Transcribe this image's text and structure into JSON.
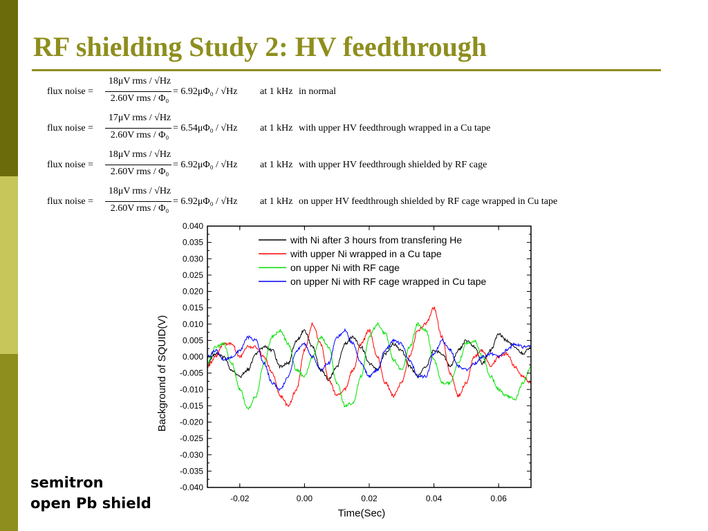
{
  "slide": {
    "title": "RF shielding Study 2: HV feedthrough",
    "accent_color": "#8e8e1e",
    "sidebar_colors": [
      "#6b6b0c",
      "#c6c65a",
      "#8e8e1e"
    ],
    "footnote_line1": "semitron",
    "footnote_line2": "open Pb shield"
  },
  "equations": [
    {
      "lead": "flux noise =",
      "numerator": "18μV rms / √Hz",
      "denominator": "2.60V rms / Φ₀",
      "result": "= 6.92μΦ₀ / √Hz",
      "condition": "at 1 kHz",
      "note": "in normal"
    },
    {
      "lead": "flux noise =",
      "numerator": "17μV rms / √Hz",
      "denominator": "2.60V rms / Φ₀",
      "result": "= 6.54μΦ₀ / √Hz",
      "condition": "at 1 kHz",
      "note": "with upper HV feedthrough wrapped in a Cu tape"
    },
    {
      "lead": "flux noise =",
      "numerator": "18μV rms / √Hz",
      "denominator": "2.60V rms / Φ₀",
      "result": "= 6.92μΦ₀ / √Hz",
      "condition": "at 1 kHz",
      "note": "with upper HV feedthrough shielded by RF cage"
    },
    {
      "lead": "flux noise =",
      "numerator": "18μV rms / √Hz",
      "denominator": "2.60V rms / Φ₀",
      "result": "= 6.92μΦ₀ / √Hz",
      "condition": "at 1 kHz",
      "note": "on upper HV feedthrough shielded by RF cage wrapped in Cu tape"
    }
  ],
  "chart_data": {
    "type": "line",
    "xlabel": "Time(Sec)",
    "ylabel": "Background of SQUID(V)",
    "xlim": [
      -0.03,
      0.07
    ],
    "ylim": [
      -0.04,
      0.04
    ],
    "xticks": [
      "-0.02",
      "0.00",
      "0.02",
      "0.04",
      "0.06"
    ],
    "xtick_values": [
      -0.02,
      0.0,
      0.02,
      0.04,
      0.06
    ],
    "yticks": [
      "0.040",
      "0.035",
      "0.030",
      "0.025",
      "0.020",
      "0.015",
      "0.010",
      "0.005",
      "0.000",
      "-0.005",
      "-0.010",
      "-0.015",
      "-0.020",
      "-0.025",
      "-0.030",
      "-0.035",
      "-0.040"
    ],
    "ytick_values": [
      0.04,
      0.035,
      0.03,
      0.025,
      0.02,
      0.015,
      0.01,
      0.005,
      0.0,
      -0.005,
      -0.01,
      -0.015,
      -0.02,
      -0.025,
      -0.03,
      -0.035,
      -0.04
    ],
    "legend_position": "top-right",
    "grid": false,
    "series": [
      {
        "name": "with Ni after 3 hours from transfering He",
        "color": "#000000",
        "x": [
          -0.03,
          -0.0275,
          -0.025,
          -0.0225,
          -0.02,
          -0.0175,
          -0.015,
          -0.0125,
          -0.01,
          -0.0075,
          -0.005,
          -0.0025,
          0.0,
          0.0025,
          0.005,
          0.0075,
          0.01,
          0.0125,
          0.015,
          0.0175,
          0.02,
          0.0225,
          0.025,
          0.0275,
          0.03,
          0.0325,
          0.035,
          0.0375,
          0.04,
          0.0425,
          0.045,
          0.0475,
          0.05,
          0.0525,
          0.055,
          0.0575,
          0.06,
          0.0625,
          0.065,
          0.0675,
          0.07
        ],
        "y": [
          -0.002,
          0.001,
          0.0,
          -0.004,
          -0.006,
          -0.004,
          0.001,
          0.003,
          0.002,
          -0.003,
          -0.002,
          0.005,
          0.008,
          0.003,
          -0.004,
          -0.007,
          -0.003,
          0.004,
          0.006,
          0.003,
          -0.002,
          -0.004,
          0.001,
          0.004,
          0.002,
          -0.003,
          -0.006,
          -0.003,
          0.002,
          0.001,
          -0.003,
          0.002,
          0.005,
          0.003,
          -0.002,
          0.002,
          0.007,
          0.005,
          0.003,
          0.001,
          0.003
        ]
      },
      {
        "name": "with upper Ni wrapped in a Cu tape",
        "color": "#ff0000",
        "x": [
          -0.03,
          -0.0275,
          -0.025,
          -0.0225,
          -0.02,
          -0.0175,
          -0.015,
          -0.0125,
          -0.01,
          -0.0075,
          -0.005,
          -0.0025,
          0.0,
          0.0025,
          0.005,
          0.0075,
          0.01,
          0.0125,
          0.015,
          0.0175,
          0.02,
          0.0225,
          0.025,
          0.0275,
          0.03,
          0.0325,
          0.035,
          0.0375,
          0.04,
          0.0425,
          0.045,
          0.0475,
          0.05,
          0.0525,
          0.055,
          0.0575,
          0.06,
          0.0625,
          0.065,
          0.0675,
          0.07
        ],
        "y": [
          -0.003,
          0.0,
          0.004,
          0.004,
          0.0,
          0.003,
          0.003,
          0.0,
          -0.005,
          -0.012,
          -0.015,
          -0.01,
          0.002,
          0.01,
          0.004,
          -0.007,
          -0.012,
          -0.01,
          -0.004,
          0.004,
          0.008,
          0.0,
          -0.008,
          -0.012,
          -0.008,
          0.0,
          0.008,
          0.01,
          0.015,
          0.006,
          -0.005,
          -0.012,
          -0.008,
          0.0,
          0.002,
          -0.003,
          0.0,
          0.001,
          -0.003,
          -0.006,
          -0.008
        ]
      },
      {
        "name": "on upper Ni with RF cage",
        "color": "#00e000",
        "x": [
          -0.03,
          -0.0275,
          -0.025,
          -0.0225,
          -0.02,
          -0.0175,
          -0.015,
          -0.0125,
          -0.01,
          -0.0075,
          -0.005,
          -0.0025,
          0.0,
          0.0025,
          0.005,
          0.0075,
          0.01,
          0.0125,
          0.015,
          0.0175,
          0.02,
          0.0225,
          0.025,
          0.0275,
          0.03,
          0.0325,
          0.035,
          0.0375,
          0.04,
          0.0425,
          0.045,
          0.0475,
          0.05,
          0.0525,
          0.055,
          0.0575,
          0.06,
          0.0625,
          0.065,
          0.0675,
          0.07
        ],
        "y": [
          -0.002,
          0.003,
          0.004,
          -0.002,
          -0.01,
          -0.016,
          -0.012,
          -0.002,
          0.006,
          0.008,
          0.004,
          -0.004,
          -0.006,
          0.0,
          0.006,
          0.003,
          -0.008,
          -0.015,
          -0.014,
          -0.006,
          0.006,
          0.01,
          0.007,
          -0.001,
          -0.004,
          0.003,
          0.01,
          0.008,
          -0.001,
          -0.008,
          -0.008,
          -0.002,
          0.004,
          0.005,
          0.0,
          -0.006,
          -0.01,
          -0.012,
          -0.013,
          -0.008,
          -0.003
        ]
      },
      {
        "name": "on upper Ni with RF cage wrapped in Cu tape",
        "color": "#0000ff",
        "x": [
          -0.03,
          -0.0275,
          -0.025,
          -0.0225,
          -0.02,
          -0.0175,
          -0.015,
          -0.0125,
          -0.01,
          -0.0075,
          -0.005,
          -0.0025,
          0.0,
          0.0025,
          0.005,
          0.0075,
          0.01,
          0.0125,
          0.015,
          0.0175,
          0.02,
          0.0225,
          0.025,
          0.0275,
          0.03,
          0.0325,
          0.035,
          0.0375,
          0.04,
          0.0425,
          0.045,
          0.0475,
          0.05,
          0.0525,
          0.055,
          0.0575,
          0.06,
          0.0625,
          0.065,
          0.0675,
          0.07
        ],
        "y": [
          0.0,
          0.002,
          -0.001,
          0.0,
          0.002,
          0.006,
          0.005,
          -0.002,
          -0.008,
          -0.01,
          -0.006,
          0.002,
          0.004,
          0.0,
          -0.004,
          -0.002,
          0.006,
          0.008,
          0.004,
          -0.002,
          -0.006,
          -0.004,
          0.002,
          0.005,
          0.004,
          -0.001,
          -0.006,
          -0.006,
          0.001,
          0.005,
          0.002,
          -0.003,
          -0.004,
          -0.002,
          0.0,
          0.001,
          0.0,
          0.002,
          0.004,
          0.003,
          0.003
        ]
      }
    ]
  }
}
